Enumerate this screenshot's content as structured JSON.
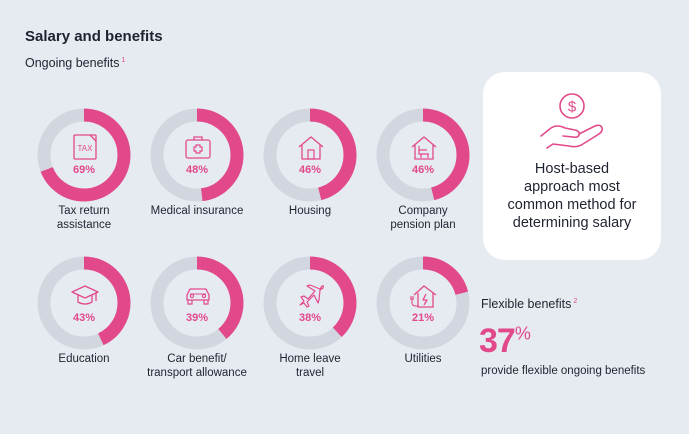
{
  "title": "Salary and benefits",
  "subtitle": "Ongoing benefits",
  "footnote_1": "1",
  "colors": {
    "accent": "#e2498a",
    "track": "#d2d7df",
    "background": "#e6ebf2"
  },
  "chart_data": {
    "type": "pie",
    "title": "Ongoing benefits",
    "categories": [
      "Tax return assistance",
      "Medical insurance",
      "Housing",
      "Company pension plan",
      "Education",
      "Car benefit/ transport allowance",
      "Home leave travel",
      "Utilities"
    ],
    "values": [
      69,
      48,
      46,
      46,
      43,
      39,
      38,
      21
    ],
    "unit": "%"
  },
  "benefits": [
    {
      "label": "Tax return\nassistance",
      "value": 69,
      "pct_label": "69%",
      "icon": "tax-icon"
    },
    {
      "label": "Medical insurance",
      "value": 48,
      "pct_label": "48%",
      "icon": "medical-kit-icon"
    },
    {
      "label": "Housing",
      "value": 46,
      "pct_label": "46%",
      "icon": "house-icon"
    },
    {
      "label": "Company\npension plan",
      "value": 46,
      "pct_label": "46%",
      "icon": "pension-chair-icon"
    },
    {
      "label": "Education",
      "value": 43,
      "pct_label": "43%",
      "icon": "graduation-cap-icon"
    },
    {
      "label": "Car benefit/\ntransport allowance",
      "value": 39,
      "pct_label": "39%",
      "icon": "car-icon"
    },
    {
      "label": "Home leave\ntravel",
      "value": 38,
      "pct_label": "38%",
      "icon": "airplane-icon"
    },
    {
      "label": "Utilities",
      "value": 21,
      "pct_label": "21%",
      "icon": "utilities-house-icon"
    }
  ],
  "card": {
    "text": "Host-based\napproach most\ncommon method for\ndetermining salary",
    "icon": "hand-coin-icon"
  },
  "flexible": {
    "title": "Flexible benefits",
    "footnote": "2",
    "value": "37",
    "unit": "%",
    "description": "provide flexible ongoing benefits"
  }
}
